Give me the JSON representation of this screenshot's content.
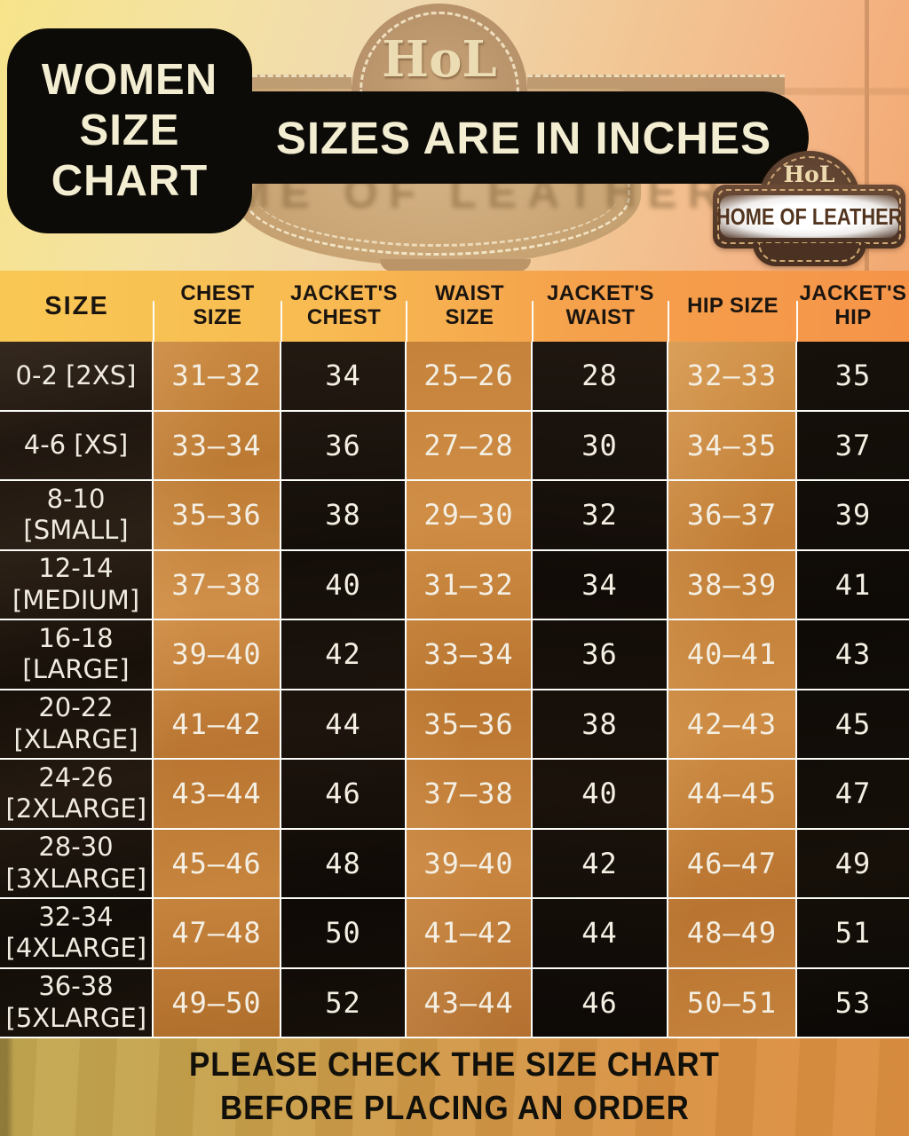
{
  "header": {
    "title_lines": [
      "WOMEN",
      "SIZE",
      "CHART"
    ],
    "banner": "SIZES ARE IN INCHES"
  },
  "logo_badge": {
    "monogram": "HoL",
    "name": "HOME OF LEATHER"
  },
  "background_sign": {
    "monogram": "HoL",
    "blur_text": "ME OF LEATHER"
  },
  "chart_data": {
    "type": "table",
    "title": "WOMEN SIZE CHART",
    "units": "inches",
    "columns": [
      "SIZE",
      "CHEST SIZE",
      "JACKET'S CHEST",
      "WAIST SIZE",
      "JACKET'S WAIST",
      "HIP SIZE",
      "JACKET'S HIP"
    ],
    "rows": [
      {
        "label": "0-2 [2XS]",
        "values": [
          "31–32",
          "34",
          "25–26",
          "28",
          "32–33",
          "35"
        ]
      },
      {
        "label": "4-6 [XS]",
        "values": [
          "33–34",
          "36",
          "27–28",
          "30",
          "34–35",
          "37"
        ]
      },
      {
        "label": "8-10 [SMALL]",
        "values": [
          "35–36",
          "38",
          "29–30",
          "32",
          "36–37",
          "39"
        ]
      },
      {
        "label": "12-14 [MEDIUM]",
        "values": [
          "37–38",
          "40",
          "31–32",
          "34",
          "38–39",
          "41"
        ]
      },
      {
        "label": "16-18 [LARGE]",
        "values": [
          "39–40",
          "42",
          "33–34",
          "36",
          "40–41",
          "43"
        ]
      },
      {
        "label": "20-22 [XLARGE]",
        "values": [
          "41–42",
          "44",
          "35–36",
          "38",
          "42–43",
          "45"
        ]
      },
      {
        "label": "24-26 [2XLARGE]",
        "values": [
          "43–44",
          "46",
          "37–38",
          "40",
          "44–45",
          "47"
        ]
      },
      {
        "label": "28-30 [3XLARGE]",
        "values": [
          "45–46",
          "48",
          "39–40",
          "42",
          "46–47",
          "49"
        ]
      },
      {
        "label": "32-34 [4XLARGE]",
        "values": [
          "47–48",
          "50",
          "41–42",
          "44",
          "48–49",
          "51"
        ]
      },
      {
        "label": "36-38 [5XLARGE]",
        "values": [
          "49–50",
          "52",
          "43–44",
          "46",
          "50–51",
          "53"
        ]
      }
    ]
  },
  "footer": {
    "line1": "PLEASE CHECK THE SIZE CHART",
    "line2": "BEFORE PLACING AN ORDER"
  },
  "colors": {
    "banner_bg": "#0D0B07",
    "cream_text": "#F3EDD2",
    "header_gradient_left": "#F9C854",
    "header_gradient_right": "#F59449",
    "orange_cell": "#C6823B",
    "dark_cell": "#171009",
    "grid_line": "#FBFBF8",
    "footer_gradient_left": "#C3A951",
    "footer_gradient_right": "#DE9040",
    "badge_leather": "#5E4230",
    "badge_text": "#53351F"
  }
}
